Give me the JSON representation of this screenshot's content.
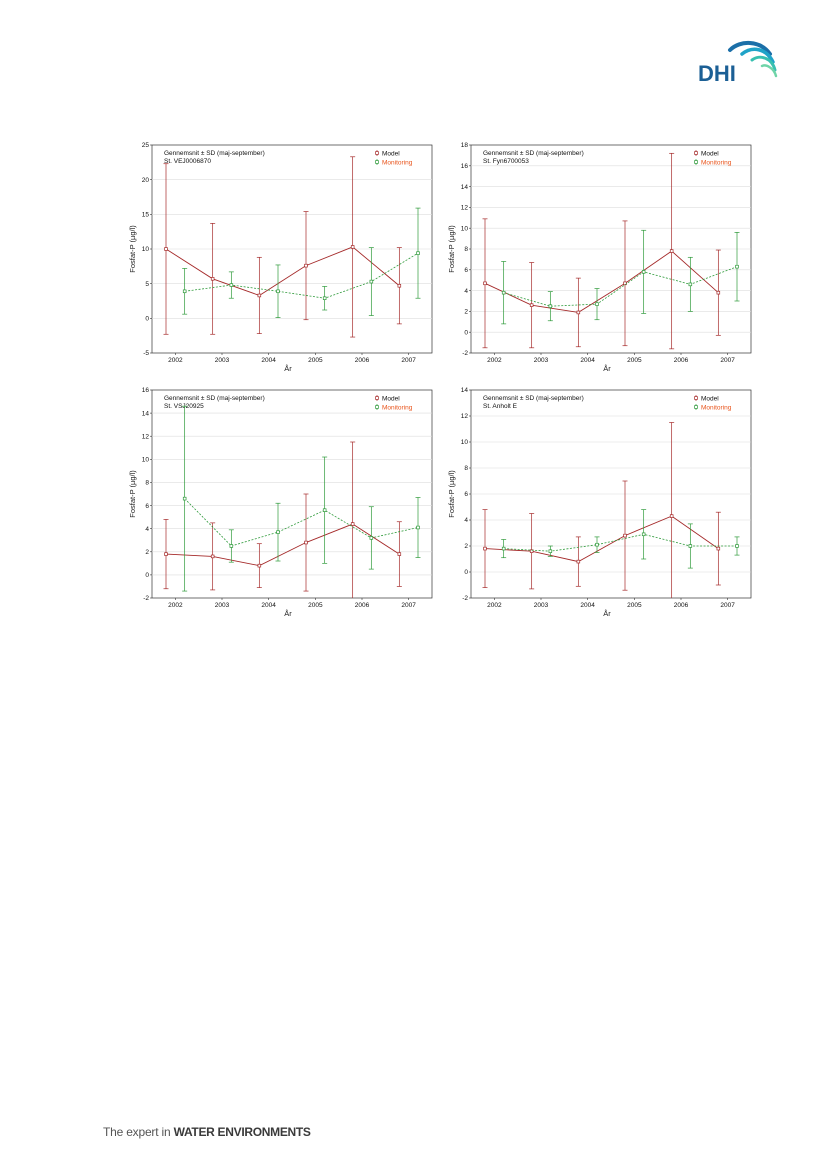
{
  "header": {
    "logo_text": "DHI"
  },
  "footer": {
    "prefix": "The expert in ",
    "emphasis": "WATER ENVIRONMENTS"
  },
  "colors": {
    "model": "#a52a2a",
    "monitoring": "#2e9a3a",
    "monitoring_label": "#e8531a",
    "grid": "#dddddd"
  },
  "chart_data": [
    {
      "type": "line",
      "annotation_line1": "Gennemsnit ± SD (maj-september)",
      "annotation_line2": "St. VEJ0006870",
      "xlabel": "År",
      "ylabel": "Fosfat-P (µg/l)",
      "categories": [
        "2002",
        "2003",
        "2004",
        "2005",
        "2006",
        "2007"
      ],
      "ylim": [
        -5,
        25
      ],
      "yticks": [
        -5,
        0,
        5,
        10,
        15,
        20,
        25
      ],
      "series": [
        {
          "name": "Model",
          "offset": -0.2,
          "values": [
            10.0,
            5.7,
            3.3,
            7.6,
            10.3,
            4.7
          ],
          "sd": [
            12.3,
            8.0,
            5.5,
            7.8,
            13.0,
            5.5
          ]
        },
        {
          "name": "Monitoring",
          "offset": 0.2,
          "values": [
            3.9,
            4.8,
            3.9,
            2.9,
            5.3,
            9.4
          ],
          "sd": [
            3.3,
            1.9,
            3.8,
            1.7,
            4.9,
            6.5
          ]
        }
      ]
    },
    {
      "type": "line",
      "annotation_line1": "Gennemsnit ± SD (maj-september)",
      "annotation_line2": "St. Fyn6700053",
      "xlabel": "År",
      "ylabel": "Fosfat-P (µg/l)",
      "categories": [
        "2002",
        "2003",
        "2004",
        "2005",
        "2006",
        "2007"
      ],
      "ylim": [
        -2,
        18
      ],
      "yticks": [
        -2,
        0,
        2,
        4,
        6,
        8,
        10,
        12,
        14,
        16,
        18
      ],
      "series": [
        {
          "name": "Model",
          "offset": -0.2,
          "values": [
            4.7,
            2.6,
            1.9,
            4.7,
            7.8,
            3.8
          ],
          "sd": [
            6.2,
            4.1,
            3.3,
            6.0,
            9.4,
            4.1
          ]
        },
        {
          "name": "Monitoring",
          "offset": 0.2,
          "values": [
            3.8,
            2.5,
            2.7,
            5.8,
            4.6,
            6.3
          ],
          "sd": [
            3.0,
            1.4,
            1.5,
            4.0,
            2.6,
            3.3
          ]
        }
      ]
    },
    {
      "type": "line",
      "annotation_line1": "Gennemsnit ± SD (maj-september)",
      "annotation_line2": "St. VSJ20925",
      "xlabel": "År",
      "ylabel": "Fosfat-P (µg/l)",
      "categories": [
        "2002",
        "2003",
        "2004",
        "2005",
        "2006",
        "2007"
      ],
      "ylim": [
        -2,
        16
      ],
      "yticks": [
        -2,
        0,
        2,
        4,
        6,
        8,
        10,
        12,
        14,
        16
      ],
      "series": [
        {
          "name": "Model",
          "offset": -0.2,
          "values": [
            1.8,
            1.6,
            0.8,
            2.8,
            4.4,
            1.8
          ],
          "sd": [
            3.0,
            2.9,
            1.9,
            4.2,
            7.1,
            2.8
          ]
        },
        {
          "name": "Monitoring",
          "offset": 0.2,
          "values": [
            6.6,
            2.5,
            3.7,
            5.6,
            3.2,
            4.1
          ],
          "sd": [
            8.0,
            1.4,
            2.5,
            4.6,
            2.7,
            2.6
          ]
        }
      ]
    },
    {
      "type": "line",
      "annotation_line1": "Gennemsnit ± SD (maj-september)",
      "annotation_line2": "St. Anholt E",
      "xlabel": "År",
      "ylabel": "Fosfat-P (µg/l)",
      "categories": [
        "2002",
        "2003",
        "2004",
        "2005",
        "2006",
        "2007"
      ],
      "ylim": [
        -2,
        14
      ],
      "yticks": [
        -2,
        0,
        2,
        4,
        6,
        8,
        10,
        12,
        14
      ],
      "series": [
        {
          "name": "Model",
          "offset": -0.2,
          "values": [
            1.8,
            1.6,
            0.8,
            2.8,
            4.3,
            1.8
          ],
          "sd": [
            3.0,
            2.9,
            1.9,
            4.2,
            7.2,
            2.8
          ]
        },
        {
          "name": "Monitoring",
          "offset": 0.2,
          "values": [
            1.8,
            1.6,
            2.1,
            2.9,
            2.0,
            2.0
          ],
          "sd": [
            0.7,
            0.4,
            0.6,
            1.9,
            1.7,
            0.7
          ]
        }
      ]
    }
  ]
}
